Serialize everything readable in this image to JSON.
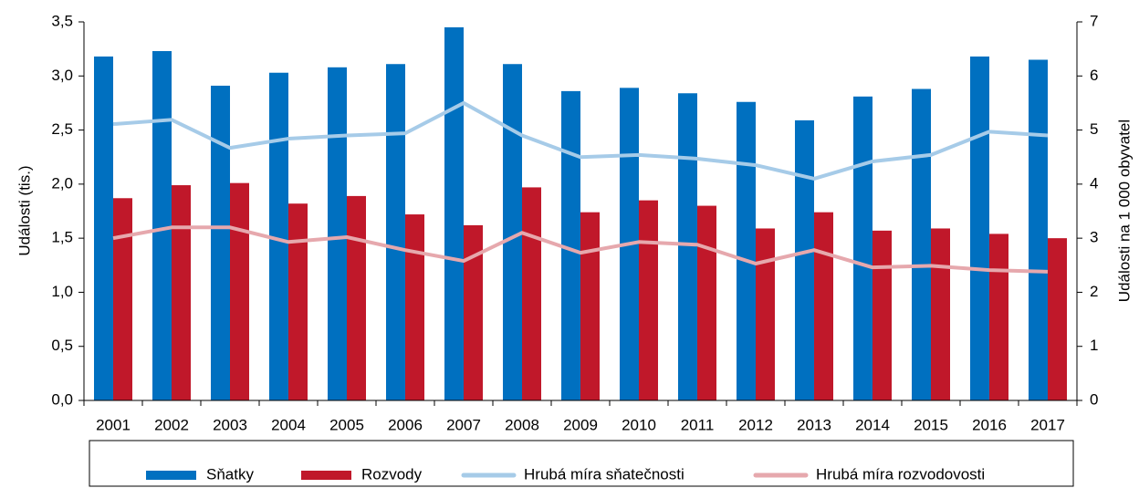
{
  "chart_data": {
    "type": "combo",
    "ylabel": "Události (tis.)",
    "y2label": "Události na 1 000 obyvatel",
    "categories": [
      "2001",
      "2002",
      "2003",
      "2004",
      "2005",
      "2006",
      "2007",
      "2008",
      "2009",
      "2010",
      "2011",
      "2012",
      "2013",
      "2014",
      "2015",
      "2016",
      "2017"
    ],
    "series": [
      {
        "name": "Sňatky",
        "type": "bar",
        "color": "#0070c0",
        "values": [
          3.18,
          3.23,
          2.91,
          3.03,
          3.08,
          3.11,
          3.45,
          3.11,
          2.86,
          2.89,
          2.84,
          2.76,
          2.59,
          2.81,
          2.88,
          3.18,
          3.15
        ]
      },
      {
        "name": "Rozvody",
        "type": "bar",
        "color": "#c0182a",
        "values": [
          1.87,
          1.99,
          2.01,
          1.82,
          1.89,
          1.72,
          1.62,
          1.97,
          1.74,
          1.85,
          1.8,
          1.59,
          1.74,
          1.57,
          1.59,
          1.54,
          1.5
        ]
      },
      {
        "name": "Hrubá míra sňatečnosti",
        "type": "line",
        "axis": "y2",
        "color": "#a6cbe8",
        "values": [
          5.11,
          5.19,
          4.67,
          4.84,
          4.9,
          4.94,
          5.5,
          4.9,
          4.5,
          4.54,
          4.47,
          4.35,
          4.1,
          4.42,
          4.54,
          4.97,
          4.9
        ]
      },
      {
        "name": "Hrubá míra rozvodovosti",
        "type": "line",
        "axis": "y2",
        "color": "#e6a8ad",
        "values": [
          3.0,
          3.2,
          3.2,
          2.93,
          3.02,
          2.78,
          2.58,
          3.1,
          2.73,
          2.93,
          2.88,
          2.53,
          2.78,
          2.46,
          2.49,
          2.41,
          2.38
        ]
      }
    ],
    "ylim": [
      0,
      3.5
    ],
    "yticks": [
      {
        "value": 0,
        "label": "0,0"
      },
      {
        "value": 0.5,
        "label": "0,5"
      },
      {
        "value": 1,
        "label": "1,0"
      },
      {
        "value": 1.5,
        "label": "1,5"
      },
      {
        "value": 2,
        "label": "2,0"
      },
      {
        "value": 2.5,
        "label": "2,5"
      },
      {
        "value": 3,
        "label": "3,0"
      },
      {
        "value": 3.5,
        "label": "3,5"
      }
    ],
    "y2lim": [
      0,
      7
    ],
    "y2ticks": [
      0,
      1,
      2,
      3,
      4,
      5,
      6,
      7
    ],
    "legend": "bottom"
  }
}
